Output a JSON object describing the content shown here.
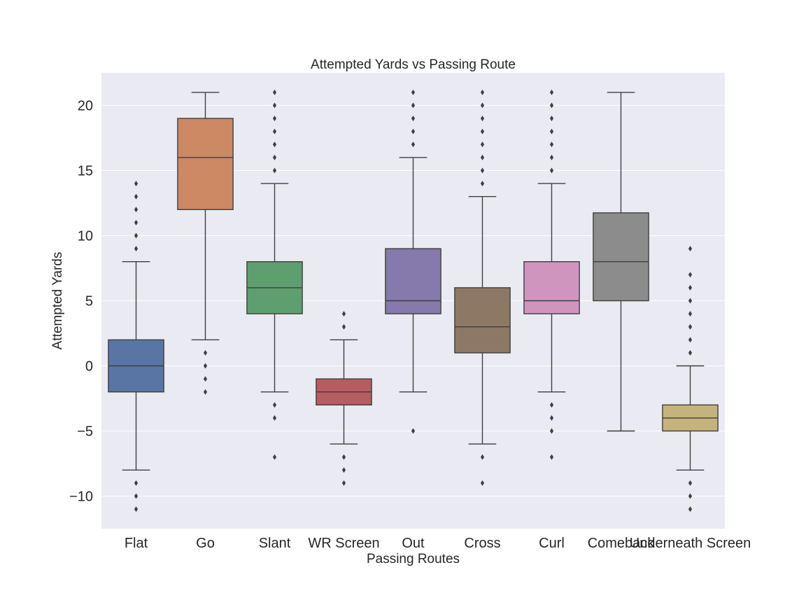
{
  "chart_data": {
    "type": "boxplot",
    "title": "Attempted Yards vs Passing Route",
    "xlabel": "Passing Routes",
    "ylabel": "Attempted Yards",
    "ylim": [
      -12.5,
      22.5
    ],
    "yticks": [
      -10,
      -5,
      0,
      5,
      10,
      15,
      20
    ],
    "grid": true,
    "background": "#eaeaf2",
    "categories": [
      "Flat",
      "Go",
      "Slant",
      "WR Screen",
      "Out",
      "Cross",
      "Curl",
      "Comeback",
      "Underneath Screen"
    ],
    "boxes": [
      {
        "label": "Flat",
        "color": "#5875a4",
        "whisker_low": -8,
        "q1": -2,
        "median": 0,
        "q3": 2,
        "whisker_high": 8,
        "outliers": [
          9,
          10,
          11,
          12,
          13,
          14,
          -9,
          -10,
          -11
        ]
      },
      {
        "label": "Go",
        "color": "#cc8963",
        "whisker_low": 2,
        "q1": 12,
        "median": 16,
        "q3": 19,
        "whisker_high": 21,
        "outliers": [
          1,
          0,
          -1,
          -2
        ]
      },
      {
        "label": "Slant",
        "color": "#5f9e6e",
        "whisker_low": -2,
        "q1": 4,
        "median": 6,
        "q3": 8,
        "whisker_high": 14,
        "outliers": [
          15,
          16,
          17,
          18,
          19,
          20,
          21,
          -3,
          -4,
          -7
        ]
      },
      {
        "label": "WR Screen",
        "color": "#b55d60",
        "whisker_low": -6,
        "q1": -3,
        "median": -2,
        "q3": -1,
        "whisker_high": 2,
        "outliers": [
          3,
          4,
          -7,
          -8,
          -9
        ]
      },
      {
        "label": "Out",
        "color": "#857aab",
        "whisker_low": -2,
        "q1": 4,
        "median": 5,
        "q3": 9,
        "whisker_high": 16,
        "outliers": [
          17,
          18,
          19,
          20,
          21,
          -5
        ]
      },
      {
        "label": "Cross",
        "color": "#8d7866",
        "whisker_low": -6,
        "q1": 1,
        "median": 3,
        "q3": 6,
        "whisker_high": 13,
        "outliers": [
          14,
          15,
          16,
          17,
          18,
          19,
          20,
          21,
          -7,
          -9
        ]
      },
      {
        "label": "Curl",
        "color": "#d095bf",
        "whisker_low": -2,
        "q1": 4,
        "median": 5,
        "q3": 8,
        "whisker_high": 14,
        "outliers": [
          15,
          16,
          17,
          18,
          19,
          20,
          21,
          -3,
          -4,
          -5,
          -7
        ]
      },
      {
        "label": "Comeback",
        "color": "#8c8c8c",
        "whisker_low": -5,
        "q1": 5,
        "median": 8,
        "q3": 11.75,
        "whisker_high": 21,
        "outliers": []
      },
      {
        "label": "Underneath Screen",
        "color": "#c4b37c",
        "whisker_low": -8,
        "q1": -5,
        "median": -4,
        "q3": -3,
        "whisker_high": 0,
        "outliers": [
          1,
          2,
          3,
          4,
          5,
          6,
          7,
          9,
          -9,
          -10,
          -11
        ]
      }
    ]
  }
}
